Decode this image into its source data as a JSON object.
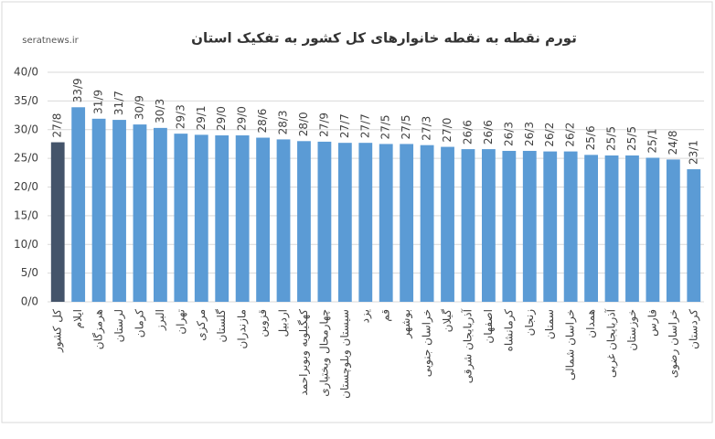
{
  "chart_data": {
    "type": "bar",
    "title": "تورم نقطه به نقطه خانوارهای کل کشور به تفکیک استان",
    "watermark": "seratnews.ir",
    "categories": [
      "کل کشور",
      "ایلام",
      "هرمزگان",
      "لرستان",
      "کرمان",
      "البرز",
      "تهران",
      "مرکزی",
      "گلستان",
      "مازندران",
      "قزوین",
      "اردبیل",
      "کهگیلویه وبویراحمد",
      "چهارمحال وبختیاری",
      "سیستان وبلوچستان",
      "یزد",
      "قم",
      "بوشهر",
      "خراسان جنوبی",
      "گیلان",
      "آذربایجان شرقی",
      "اصفهان",
      "کرمانشاه",
      "زنجان",
      "سمنان",
      "خراسان شمالی",
      "همدان",
      "آذربایجان غربی",
      "خوزستان",
      "فارس",
      "خراسان رضوی",
      "کردستان"
    ],
    "values": [
      27.8,
      33.9,
      31.9,
      31.7,
      30.9,
      30.3,
      29.3,
      29.1,
      29.0,
      29.0,
      28.6,
      28.3,
      28.0,
      27.9,
      27.7,
      27.7,
      27.5,
      27.5,
      27.3,
      27.0,
      26.6,
      26.6,
      26.3,
      26.3,
      26.2,
      26.2,
      25.6,
      25.5,
      25.5,
      25.1,
      24.8,
      23.1
    ],
    "value_labels": [
      "27/8",
      "33/9",
      "31/9",
      "31/7",
      "30/9",
      "30/3",
      "29/3",
      "29/1",
      "29/0",
      "29/0",
      "28/6",
      "28/3",
      "28/0",
      "27/9",
      "27/7",
      "27/7",
      "27/5",
      "27/5",
      "27/3",
      "27/0",
      "26/6",
      "26/6",
      "26/3",
      "26/3",
      "26/2",
      "26/2",
      "25/6",
      "25/5",
      "25/5",
      "25/1",
      "24/8",
      "23/1"
    ],
    "colors": [
      "#44546a",
      "#5b9bd5",
      "#5b9bd5",
      "#5b9bd5",
      "#5b9bd5",
      "#5b9bd5",
      "#5b9bd5",
      "#5b9bd5",
      "#5b9bd5",
      "#5b9bd5",
      "#5b9bd5",
      "#5b9bd5",
      "#5b9bd5",
      "#5b9bd5",
      "#5b9bd5",
      "#5b9bd5",
      "#5b9bd5",
      "#5b9bd5",
      "#5b9bd5",
      "#5b9bd5",
      "#5b9bd5",
      "#5b9bd5",
      "#5b9bd5",
      "#5b9bd5",
      "#5b9bd5",
      "#5b9bd5",
      "#5b9bd5",
      "#5b9bd5",
      "#5b9bd5",
      "#5b9bd5",
      "#5b9bd5",
      "#5b9bd5"
    ],
    "ylim": [
      0,
      40
    ],
    "yticks": [
      {
        "value": 0,
        "label": "0/0"
      },
      {
        "value": 5,
        "label": "5/0"
      },
      {
        "value": 10,
        "label": "10/0"
      },
      {
        "value": 15,
        "label": "15/0"
      },
      {
        "value": 20,
        "label": "20/0"
      },
      {
        "value": 25,
        "label": "25/0"
      },
      {
        "value": 30,
        "label": "30/0"
      },
      {
        "value": 35,
        "label": "35/0"
      },
      {
        "value": 40,
        "label": "40/0"
      }
    ],
    "grid": true
  }
}
